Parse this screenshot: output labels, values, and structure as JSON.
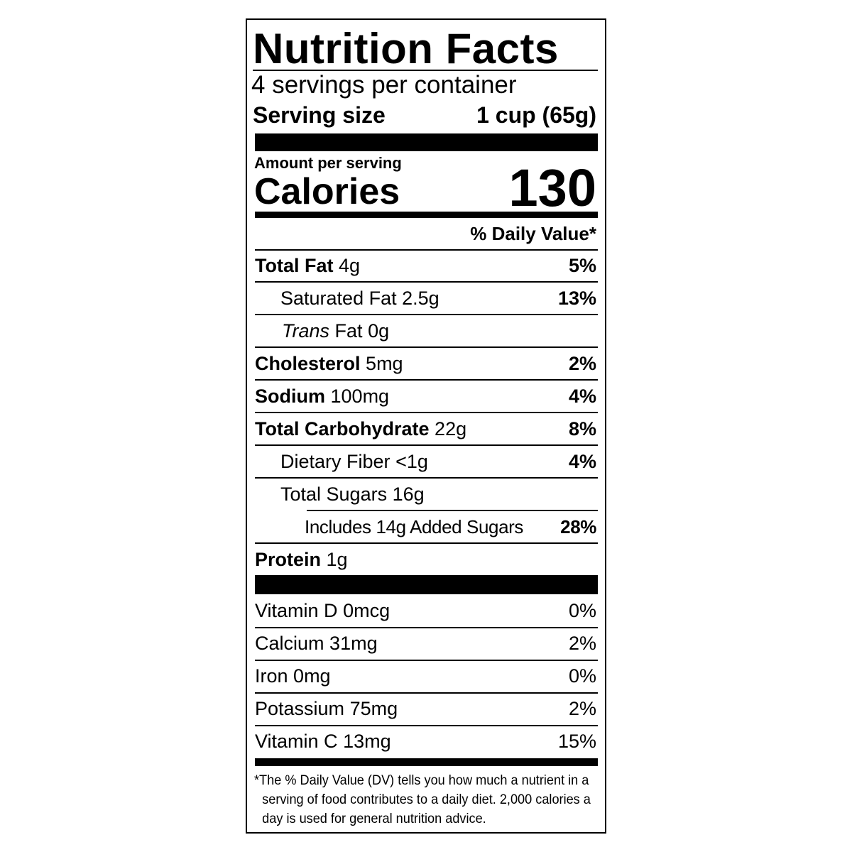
{
  "title": "Nutrition Facts",
  "servings": "4 servings per container",
  "serving_size": {
    "label": "Serving size",
    "value": "1 cup (65g)"
  },
  "amount_per_serving": "Amount per serving",
  "calories": {
    "label": "Calories",
    "value": "130"
  },
  "daily_value_header": "% Daily Value*",
  "nutrients": [
    {
      "name": "Total Fat",
      "amount": "4g",
      "dv": "5%"
    },
    {
      "name": "Saturated Fat",
      "amount": "2.5g",
      "dv": "13%"
    },
    {
      "name_italic": "Trans",
      "name": "Fat",
      "amount": "0g"
    },
    {
      "name": "Cholesterol",
      "amount": "5mg",
      "dv": "2%"
    },
    {
      "name": "Sodium",
      "amount": "100mg",
      "dv": "4%"
    },
    {
      "name": "Total Carbohydrate",
      "amount": "22g",
      "dv": "8%"
    },
    {
      "name": "Dietary Fiber",
      "amount": "<1g",
      "dv": "4%"
    },
    {
      "name": "Total Sugars",
      "amount": "16g"
    },
    {
      "name": "Includes 14g Added Sugars",
      "dv": "28%"
    },
    {
      "name": "Protein",
      "amount": "1g"
    }
  ],
  "vitamins": [
    {
      "name": "Vitamin D",
      "amount": "0mcg",
      "dv": "0%"
    },
    {
      "name": "Calcium",
      "amount": "31mg",
      "dv": "2%"
    },
    {
      "name": "Iron",
      "amount": "0mg",
      "dv": "0%"
    },
    {
      "name": "Potassium",
      "amount": "75mg",
      "dv": "2%"
    },
    {
      "name": "Vitamin C",
      "amount": "13mg",
      "dv": "15%"
    }
  ],
  "footnote": "*The % Daily Value (DV) tells you how much a nutrient in a serving of food contributes to a daily diet. 2,000 calories a day is used for general nutrition advice."
}
